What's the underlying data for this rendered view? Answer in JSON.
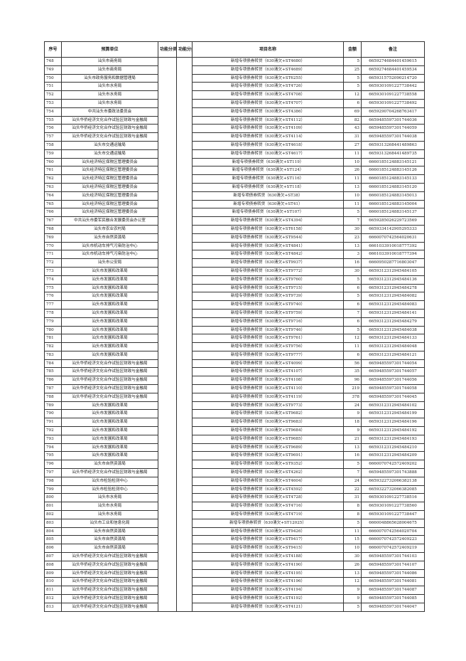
{
  "headers": {
    "no": "序号",
    "unit": "预算单位",
    "func_code": "功能分类代码",
    "func": "功能分类",
    "project": "项目名称",
    "amount": "金额",
    "remark": "备注"
  },
  "rows": [
    [
      "748",
      "汕头市商务局",
      "新增专项债券转贷（630清欠+ST4680）",
      "5",
      "6659274684401459615"
    ],
    [
      "749",
      "汕头市商务局",
      "新增专项债券转贷（630清欠+ST4689）",
      "25",
      "6659274684401459534"
    ],
    [
      "750",
      "汕头市政务服务和数据管理局",
      "新增专项债券转贷（630清欠+ST6255）",
      "5",
      "6659315752090214720"
    ],
    [
      "751",
      "汕头市水务局",
      "新增专项债券转贷（630清欠+ST4726）",
      "5",
      "6659301091227738442"
    ],
    [
      "752",
      "汕头市水务局",
      "新增专项债券转贷（630清欠+ST4708）",
      "12",
      "6659301091227738558"
    ],
    [
      "753",
      "汕头市水务局",
      "新增专项债券转贷（630清欠+ST4707）",
      "6",
      "6659301091227738492"
    ],
    [
      "754",
      "中共汕头市委政法委员会",
      "新增专项债券转贷（630清欠+ST4386）",
      "69",
      "6659290704268763417"
    ],
    [
      "755",
      "汕头华侨经济文化合作试验区财政与金融局",
      "新增专项债券转贷（630清欠+ST4112）",
      "82",
      "6659485597301744036"
    ],
    [
      "756",
      "汕头华侨经济文化合作试验区财政与金融局",
      "新增专项债券转贷（630清欠+ST4109）",
      "43",
      "6659485597301744059"
    ],
    [
      "757",
      "汕头华侨经济文化合作试验区财政与金融局",
      "新增专项债券转贷（630清欠+ST4114）",
      "31",
      "6659485597301744038"
    ],
    [
      "758",
      "汕头市交通运输局",
      "新增专项债券转贷（630清欠+ST4618）",
      "27",
      "6659313268441489863"
    ],
    [
      "759",
      "汕头市交通运输局",
      "新增专项债券转贷（630清欠+ST4617）",
      "11",
      "6659313268441489735"
    ],
    [
      "760",
      "汕头经济特区保税区管理委员会",
      "新增专项债券转贷（630清欠+ST119）",
      "10",
      "6660185124883145121"
    ],
    [
      "761",
      "汕头经济特区保税区管理委员会",
      "新增专项债券转贷（630清欠+ST124）",
      "26",
      "6660185124883145126"
    ],
    [
      "762",
      "汕头经济特区保税区管理委员会",
      "新增专项债券转贷（630清欠+ST116）",
      "11",
      "6660185124883145133"
    ],
    [
      "763",
      "汕头经济特区保税区管理委员会",
      "新增专项债券转贷（630清欠+ST118）",
      "13",
      "6660185124883145120"
    ],
    [
      "764",
      "汕头经济特区保税区管理委员会",
      "新增专项债券转贷（630清欠+ST38）",
      "10",
      "6660185124883145013"
    ],
    [
      "765",
      "汕头经济特区保税区管理委员会",
      "新增专项债券转贷（630清欠+ST41）",
      "11",
      "6660185124883145004"
    ],
    [
      "766",
      "汕头经济特区保税区管理委员会",
      "新增专项债券转贷（630清欠+ST107）",
      "5",
      "6660185124883145137"
    ],
    [
      "767",
      "中共汕头市委军民融合发展委员会办公室",
      "新增专项债券转贷（630清欠+ST4394）",
      "7",
      "6659285026229723569"
    ],
    [
      "768",
      "汕头市农业农村局",
      "新增专项债券转贷（630清欠+ST6158）",
      "30",
      "6659334142905295333"
    ],
    [
      "769",
      "汕头市自然资源局",
      "新增专项债券转贷（630清欠+ST9544）",
      "23",
      "6660070742564020631"
    ],
    [
      "770",
      "汕头市机动车排气污染防治中心",
      "新增专项债券转贷（630清欠+ST4841）",
      "13",
      "6661033910018777392"
    ],
    [
      "771",
      "汕头市机动车排气污染防治中心",
      "新增专项债券转贷（630清欠+ST4842）",
      "3",
      "6661033910018777394"
    ],
    [
      "772",
      "汕头市公安局",
      "新增专项债券转贷（630清欠+ST9937）",
      "16",
      "6660950287716803047"
    ],
    [
      "773",
      "汕头市发展和改革局",
      "新增专项债券转贷（630清欠+ST9772）",
      "30",
      "6659312312945484105"
    ],
    [
      "774",
      "汕头市发展和改革局",
      "新增专项债券转贷（630清欠+ST9760）",
      "5",
      "6659312312945484136"
    ],
    [
      "775",
      "汕头市发展和改革局",
      "新增专项债券转贷（630清欠+ST9715）",
      "6",
      "6659312312945484278"
    ],
    [
      "776",
      "汕头市发展和改革局",
      "新增专项债券转贷（630清欠+ST9739）",
      "5",
      "6659312312945484082"
    ],
    [
      "777",
      "汕头市发展和改革局",
      "新增专项债券转贷（630清欠+ST9740）",
      "6",
      "6659312312945484083"
    ],
    [
      "778",
      "汕头市发展和改革局",
      "新增专项债券转贷（630清欠+ST9759）",
      "7",
      "6659312312945484141"
    ],
    [
      "779",
      "汕头市发展和改革局",
      "新增专项债券转贷（630清欠+ST9716）",
      "6",
      "6659312312945484279"
    ],
    [
      "780",
      "汕头市发展和改革局",
      "新增专项债券转贷（630清欠+ST9746）",
      "5",
      "6659312312945484038"
    ],
    [
      "781",
      "汕头市发展和改革局",
      "新增专项债券转贷（630清欠+ST9761）",
      "12",
      "6659312312945484133"
    ],
    [
      "782",
      "汕头市发展和改革局",
      "新增专项债券转贷（630清欠+ST9756）",
      "11",
      "6659312312945484048"
    ],
    [
      "783",
      "汕头市发展和改革局",
      "新增专项债券转贷（630清欠+ST9777）",
      "6",
      "6659312312945484121"
    ],
    [
      "784",
      "汕头华侨经济文化合作试验区财政与金融局",
      "新增专项债券转贷（630清欠+ST4099）",
      "56",
      "6659485597301744054"
    ],
    [
      "785",
      "汕头华侨经济文化合作试验区财政与金融局",
      "新增专项债券转贷（630清欠+ST4107）",
      "35",
      "6659485597301744057"
    ],
    [
      "786",
      "汕头华侨经济文化合作试验区财政与金融局",
      "新增专项债券转贷（630清欠+ST4108）",
      "96",
      "6659485597301744056"
    ],
    [
      "787",
      "汕头华侨经济文化合作试验区财政与金融局",
      "新增专项债券转贷（630清欠+ST4110）",
      "219",
      "6659485597301744058"
    ],
    [
      "788",
      "汕头华侨经济文化合作试验区财政与金融局",
      "新增专项债券转贷（630清欠+ST4119）",
      "378",
      "6659485597301744045"
    ],
    [
      "789",
      "汕头市发展和改革局",
      "新增专项债券转贷（630清欠+ST9773）",
      "24",
      "6659312312945484102"
    ],
    [
      "790",
      "汕头市发展和改革局",
      "新增专项债券转贷（630清欠+ST9682）",
      "9",
      "6659312312945484199"
    ],
    [
      "791",
      "汕头市发展和改革局",
      "新增专项债券转贷（630清欠+ST9683）",
      "18",
      "6659312312945484196"
    ],
    [
      "792",
      "汕头市发展和改革局",
      "新增专项债券转贷（630清欠+ST9684）",
      "9",
      "6659312312945484192"
    ],
    [
      "793",
      "汕头市发展和改革局",
      "新增专项债券转贷（630清欠+ST9685）",
      "21",
      "6659312312945484193"
    ],
    [
      "794",
      "汕头市发展和改革局",
      "新增专项债券转贷（630清欠+ST9689）",
      "13",
      "6659312312945484210"
    ],
    [
      "795",
      "汕头市发展和改革局",
      "新增专项债券转贷（630清欠+ST9691）",
      "16",
      "6659312312945484209"
    ],
    [
      "796",
      "汕头市自然资源局",
      "新增专项债券转贷（630清欠+ST9352）",
      "5",
      "6660070742572409202"
    ],
    [
      "797",
      "汕头华侨经济文化合作试验区财政与金融局",
      "新增专项债券转贷（630清欠+ST4262）",
      "7",
      "6659485597301743888"
    ],
    [
      "798",
      "汕头市检验检测中心",
      "新增专项债券转贷（630清欠+ST4604）",
      "24",
      "6659322732066382138"
    ],
    [
      "799",
      "汕头市检验检测中心",
      "新增专项债券转贷（630清欠+ST4592）",
      "22",
      "6659322732066382085"
    ],
    [
      "800",
      "汕头市水务局",
      "新增专项债券转贷（630清欠+ST4728）",
      "31",
      "6659301091227738516"
    ],
    [
      "801",
      "汕头市水务局",
      "新增专项债券转贷（630清欠+ST4716）",
      "8",
      "6659301091227738560"
    ],
    [
      "802",
      "汕头市水务局",
      "新增专项债券转贷（630清欠+ST4719）",
      "8",
      "6659301091227738447"
    ],
    [
      "803",
      "汕头市工业和信息化局",
      "新增专项债券转贷（630清欠+ST12025）",
      "5",
      "6660048865628004675"
    ],
    [
      "804",
      "汕头市自然资源局",
      "新增专项债券转贷（630清欠+ST9426）",
      "11",
      "6660070742564020704"
    ],
    [
      "805",
      "汕头市自然资源局",
      "新增专项债券转贷（630清欠+ST9417）",
      "15",
      "6660070742572409223"
    ],
    [
      "806",
      "汕头市自然资源局",
      "新增专项债券转贷（630清欠+ST9415）",
      "10",
      "6660070742572409219"
    ],
    [
      "807",
      "汕头华侨经济文化合作试验区财政与金融局",
      "新增专项债券转贷（630清欠+ST4188）",
      "30",
      "6659485597301744103"
    ],
    [
      "808",
      "汕头华侨经济文化合作试验区财政与金融局",
      "新增专项债券转贷（630清欠+ST4190）",
      "26",
      "6659485597301744107"
    ],
    [
      "809",
      "汕头华侨经济文化合作试验区财政与金融局",
      "新增专项债券转贷（630清欠+ST4195）",
      "13",
      "6659485597301744086"
    ],
    [
      "810",
      "汕头华侨经济文化合作试验区财政与金融局",
      "新增专项债券转贷（630清欠+ST4196）",
      "12",
      "6659485597301744081"
    ],
    [
      "811",
      "汕头华侨经济文化合作试验区财政与金融局",
      "新增专项债券转贷（630清欠+ST4194）",
      "9",
      "6659485597301744087"
    ],
    [
      "812",
      "汕头华侨经济文化合作试验区财政与金融局",
      "新增专项债券转贷（630清欠+ST4192）",
      "9",
      "6659485597301744085"
    ],
    [
      "813",
      "汕头华侨经济文化合作试验区财政与金融局",
      "新增专项债券转贷（630清欠+ST4121）",
      "5",
      "6659485597301744047"
    ]
  ]
}
